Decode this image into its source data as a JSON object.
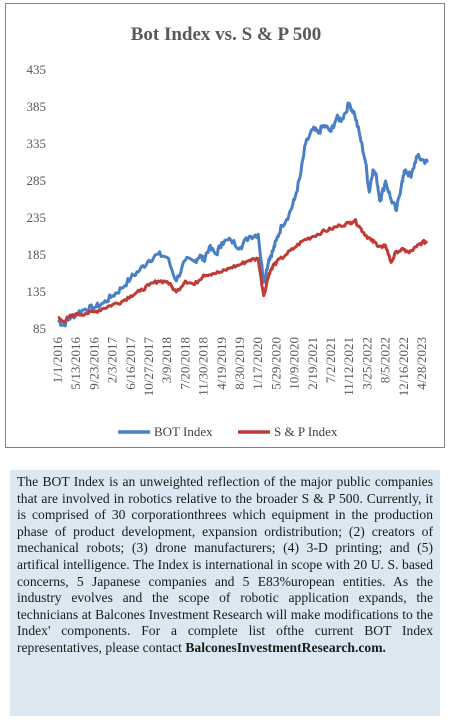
{
  "chart_data": {
    "type": "line",
    "title": "Bot Index vs. S & P 500",
    "xlabel": "",
    "ylabel": "",
    "ylim": [
      85,
      435
    ],
    "yticks": [
      85,
      135,
      185,
      235,
      285,
      335,
      385,
      435
    ],
    "xticks": [
      "1/1/2016",
      "5/13/2016",
      "9/23/2016",
      "2/3/2017",
      "6/16/2017",
      "10/27/2017",
      "3/9/2018",
      "7/20/2018",
      "11/30/2018",
      "4/19/2019",
      "8/30/2019",
      "1/17/2020",
      "5/29/2020",
      "10/9/2020",
      "2/19/2021",
      "7/2/2021",
      "11/12/2021",
      "3/25/2022",
      "8/5/2022",
      "12/16/2022",
      "4/28/2023"
    ],
    "grid": false,
    "legend": "bottom",
    "series": [
      {
        "name": "BOT Index",
        "color": "#4a7fc4",
        "x": [
          0,
          0.3,
          0.6,
          1,
          1.5,
          2,
          2.5,
          3,
          3.5,
          4,
          4.5,
          5,
          5.5,
          6,
          6.5,
          7,
          7.5,
          7.8,
          8,
          8.3,
          8.7,
          9,
          9.5,
          10,
          10.5,
          11,
          11.3,
          11.6,
          11.8,
          12,
          12.3,
          12.7,
          13,
          13.3,
          13.6,
          14,
          14.3,
          14.6,
          15,
          15.3,
          15.6,
          16,
          16.3,
          16.6,
          16.9,
          17.1,
          17.3,
          17.5,
          17.7,
          18,
          18.3,
          18.6,
          18.9,
          19.1,
          19.4,
          19.7,
          20,
          20.3
        ],
        "y": [
          97,
          90,
          99,
          106,
          112,
          114,
          120,
          130,
          140,
          154,
          165,
          178,
          186,
          182,
          150,
          178,
          176,
          185,
          178,
          195,
          186,
          202,
          205,
          195,
          210,
          213,
          148,
          180,
          190,
          205,
          225,
          240,
          260,
          290,
          335,
          355,
          350,
          360,
          352,
          370,
          368,
          390,
          375,
          345,
          310,
          270,
          300,
          290,
          258,
          285,
          260,
          245,
          285,
          300,
          290,
          318,
          314,
          310
        ]
      },
      {
        "name": "S & P Index",
        "color": "#bf3b36",
        "x": [
          0,
          0.3,
          0.6,
          1,
          1.5,
          2,
          2.5,
          3,
          3.5,
          4,
          4.5,
          5,
          5.5,
          6,
          6.5,
          7,
          7.5,
          8,
          8.5,
          9,
          9.5,
          10,
          10.5,
          11,
          11.3,
          11.6,
          11.8,
          12,
          12.5,
          13,
          13.5,
          14,
          14.5,
          15,
          15.5,
          16,
          16.3,
          16.6,
          16.9,
          17.2,
          17.5,
          17.8,
          18,
          18.3,
          18.6,
          19,
          19.3,
          19.7,
          20,
          20.3
        ],
        "y": [
          100,
          95,
          101,
          104,
          106,
          108,
          113,
          118,
          122,
          130,
          136,
          144,
          150,
          149,
          135,
          150,
          145,
          158,
          160,
          162,
          168,
          172,
          178,
          180,
          130,
          160,
          170,
          175,
          185,
          195,
          205,
          210,
          216,
          220,
          225,
          228,
          232,
          222,
          212,
          205,
          200,
          195,
          198,
          175,
          190,
          192,
          188,
          196,
          202,
          203
        ]
      }
    ]
  },
  "description": {
    "text": "The BOT Index is an unweighted reflection of the major public companies that are involved in robotics relative to the broader S & P 500. Currently, it is comprised of 30 corporationthrees which equipment in the production phase of product development, expansion ordistribution; (2) creators of mechanical robots; (3) drone manufacturers; (4) 3-D printing; and (5) artifical intelligence. The Index is international in scope with 20 U. S. based concerns, 5 Japanese companies and 5 E83%uropean entities. As the industry evolves and the scope of robotic application expands, the technicians at Balcones Investment Research will make modifications to the Index' components. For a complete list ofthe current BOT Index representatives, please contact",
    "link": "BalconesInvestmentResearch.com."
  }
}
